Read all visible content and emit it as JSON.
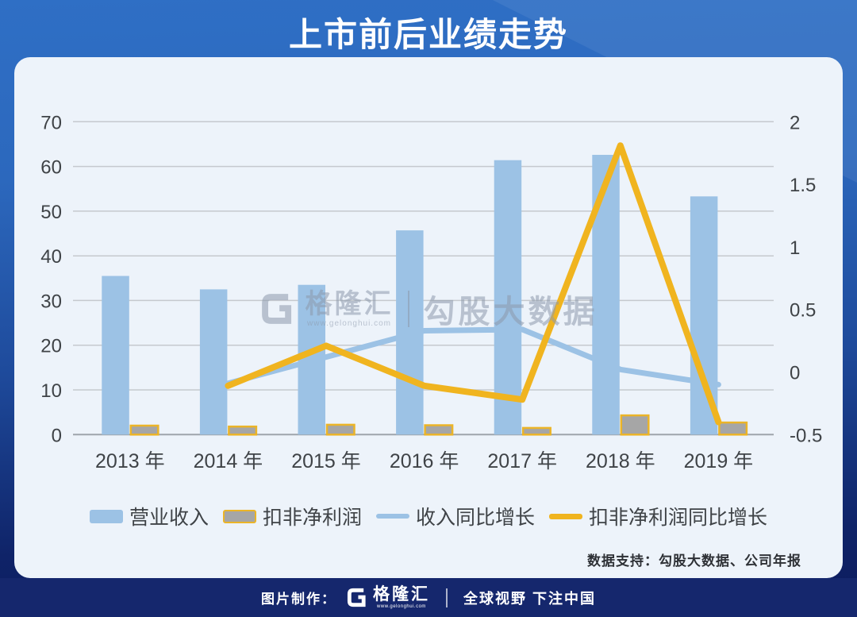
{
  "page": {
    "title": "上市前后业绩走势",
    "colors": {
      "header_blue": "#2E6DC2",
      "background_bottom": "#0D1D60",
      "card_background": "#EDF3FA",
      "footer_background": "#15276D",
      "axis_text": "#3F4347"
    },
    "watermark": {
      "brand": "格隆汇",
      "url": "www.gelonghui.com",
      "suffix": "勾股大数据"
    },
    "data_support": "数据支持：勾股大数据、公司年报",
    "footer": {
      "made_by": "图片制作：",
      "brand": "格隆汇",
      "brand_url": "www.gelonghui.com",
      "slogan": "全球视野 下注中国"
    }
  },
  "chart_data": {
    "type": "bar",
    "subtype": "combo bar+line, dual axis",
    "title": "上市前后业绩走势",
    "categories": [
      "2013 年",
      "2014 年",
      "2015 年",
      "2016 年",
      "2017 年",
      "2018 年",
      "2019 年"
    ],
    "series": [
      {
        "name": "营业收入",
        "type": "bar",
        "axis": "left",
        "color": "#9CC2E5",
        "values": [
          35.5,
          32.5,
          33.5,
          45.7,
          61.4,
          62.6,
          53.3
        ]
      },
      {
        "name": "扣非净利润",
        "type": "bar",
        "axis": "left",
        "color": "#A6A6A6",
        "border_color": "#EBB428",
        "values": [
          2.0,
          1.8,
          2.2,
          2.1,
          1.5,
          4.3,
          2.7
        ]
      },
      {
        "name": "收入同比增长",
        "type": "line",
        "axis": "right",
        "color": "#9CC2E5",
        "values": [
          null,
          -0.09,
          0.12,
          0.33,
          0.34,
          0.02,
          -0.1
        ]
      },
      {
        "name": "扣非净利润同比增长",
        "type": "line",
        "axis": "right",
        "color": "#F0B41F",
        "values": [
          null,
          -0.11,
          0.21,
          -0.11,
          -0.22,
          1.81,
          -0.4
        ]
      }
    ],
    "left_axis": {
      "min": 0,
      "max": 70,
      "step": 10,
      "ticks": [
        0,
        10,
        20,
        30,
        40,
        50,
        60,
        70
      ]
    },
    "right_axis": {
      "min": -0.5,
      "max": 2,
      "step": 0.5,
      "ticks": [
        -0.5,
        0,
        0.5,
        1,
        1.5,
        2
      ]
    },
    "grid": true,
    "legend_position": "bottom"
  }
}
